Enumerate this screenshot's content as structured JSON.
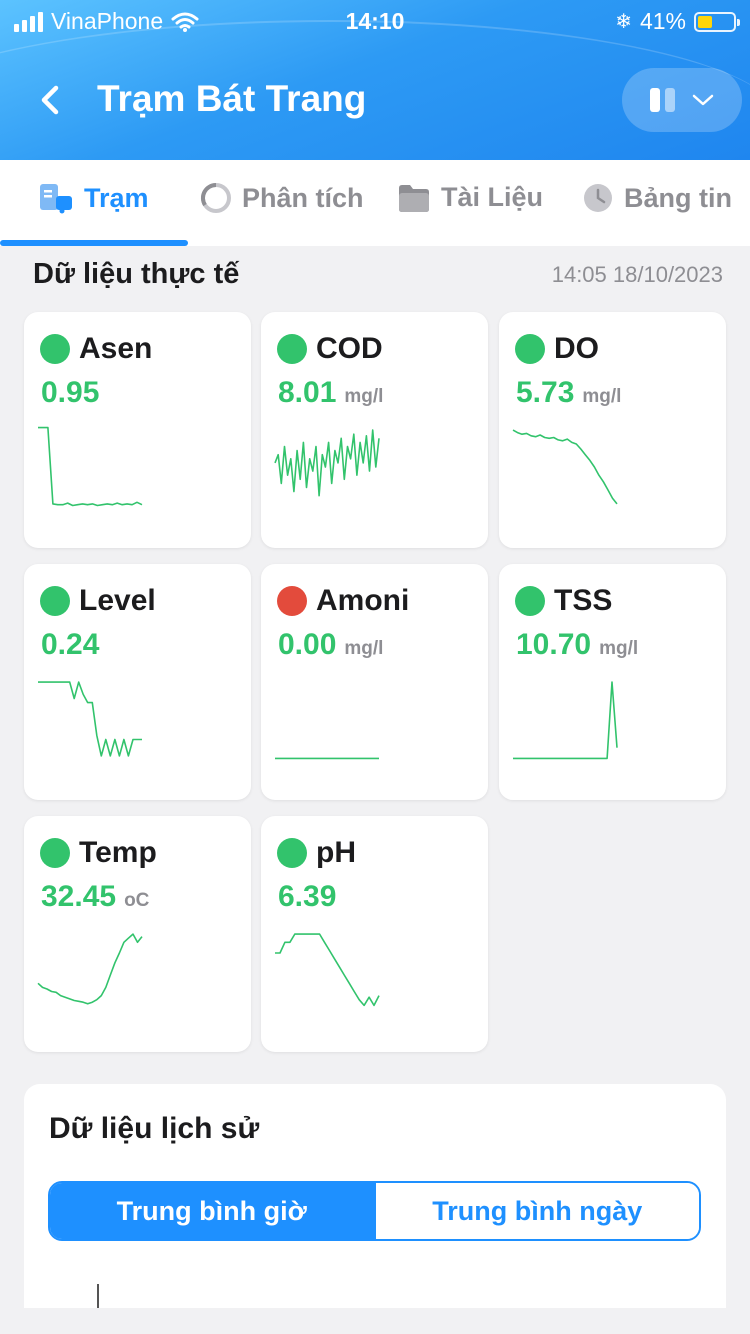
{
  "status_bar": {
    "carrier": "VinaPhone",
    "time": "14:10",
    "battery": "41%",
    "battery_level": 0.41
  },
  "header": {
    "title": "Trạm Bát Trang"
  },
  "tabs": [
    {
      "label": "Trạm",
      "icon": "station-truck-icon",
      "active": true
    },
    {
      "label": "Phân tích",
      "icon": "analysis-ring-icon",
      "active": false
    },
    {
      "label": "Tài Liệu",
      "icon": "folder-icon",
      "active": false
    },
    {
      "label": "Bảng tin",
      "icon": "clock-icon",
      "active": false
    }
  ],
  "realtime": {
    "title": "Dữ liệu thực tế",
    "timestamp": "14:05 18/10/2023"
  },
  "colors": {
    "good": "#32c36c",
    "bad": "#e34b3c",
    "accent": "#1e90ff"
  },
  "cards": [
    {
      "name": "Asen",
      "value": "0.95",
      "unit": "",
      "status": "good",
      "spark": [
        0.98,
        0.98,
        0.98,
        0.05,
        0.04,
        0.04,
        0.06,
        0.03,
        0.04,
        0.05,
        0.04,
        0.05,
        0.03,
        0.04,
        0.05,
        0.04,
        0.06,
        0.04,
        0.05,
        0.04,
        0.07,
        0.04
      ]
    },
    {
      "name": "COD",
      "value": "8.01",
      "unit": "mg/l",
      "status": "good",
      "spark": [
        0.55,
        0.65,
        0.3,
        0.75,
        0.4,
        0.6,
        0.2,
        0.7,
        0.35,
        0.8,
        0.25,
        0.6,
        0.45,
        0.75,
        0.15,
        0.65,
        0.5,
        0.8,
        0.3,
        0.7,
        0.55,
        0.85,
        0.35,
        0.75,
        0.6,
        0.9,
        0.4,
        0.8,
        0.55,
        0.88,
        0.45,
        0.95,
        0.5,
        0.85
      ]
    },
    {
      "name": "DO",
      "value": "5.73",
      "unit": "mg/l",
      "status": "good",
      "spark": [
        0.95,
        0.92,
        0.9,
        0.91,
        0.88,
        0.87,
        0.89,
        0.86,
        0.85,
        0.86,
        0.83,
        0.82,
        0.84,
        0.8,
        0.78,
        0.72,
        0.65,
        0.58,
        0.5,
        0.4,
        0.32,
        0.22,
        0.12,
        0.05
      ]
    },
    {
      "name": "Level",
      "value": "0.24",
      "unit": "",
      "status": "good",
      "spark": [
        0.95,
        0.95,
        0.95,
        0.95,
        0.95,
        0.95,
        0.95,
        0.95,
        0.75,
        0.95,
        0.8,
        0.7,
        0.7,
        0.3,
        0.05,
        0.25,
        0.05,
        0.25,
        0.05,
        0.25,
        0.05,
        0.25,
        0.25,
        0.25
      ]
    },
    {
      "name": "Amoni",
      "value": "0.00",
      "unit": "mg/l",
      "status": "bad",
      "spark": [
        0.02,
        0.02,
        0.02,
        0.02,
        0.02,
        0.02,
        0.02,
        0.02,
        0.02,
        0.02
      ]
    },
    {
      "name": "TSS",
      "value": "10.70",
      "unit": "mg/l",
      "status": "good",
      "spark": [
        0.02,
        0.02,
        0.02,
        0.02,
        0.02,
        0.02,
        0.02,
        0.02,
        0.02,
        0.02,
        0.02,
        0.02,
        0.02,
        0.02,
        0.02,
        0.02,
        0.02,
        0.02,
        0.02,
        0.02,
        0.95,
        0.15
      ]
    },
    {
      "name": "Temp",
      "value": "32.45",
      "unit": "oC",
      "status": "good",
      "spark": [
        0.35,
        0.3,
        0.28,
        0.25,
        0.24,
        0.2,
        0.18,
        0.16,
        0.14,
        0.13,
        0.12,
        0.1,
        0.12,
        0.15,
        0.2,
        0.3,
        0.45,
        0.6,
        0.72,
        0.85,
        0.9,
        0.95,
        0.85,
        0.92
      ]
    },
    {
      "name": "pH",
      "value": "6.39",
      "unit": "",
      "status": "good",
      "spark": [
        0.72,
        0.72,
        0.85,
        0.85,
        0.95,
        0.95,
        0.95,
        0.95,
        0.95,
        0.95,
        0.85,
        0.75,
        0.65,
        0.55,
        0.45,
        0.35,
        0.25,
        0.15,
        0.08,
        0.18,
        0.08,
        0.2
      ]
    }
  ],
  "history": {
    "title": "Dữ liệu lịch sử",
    "seg_hourly": "Trung bình giờ",
    "seg_daily": "Trung bình ngày",
    "selected": "hourly"
  }
}
